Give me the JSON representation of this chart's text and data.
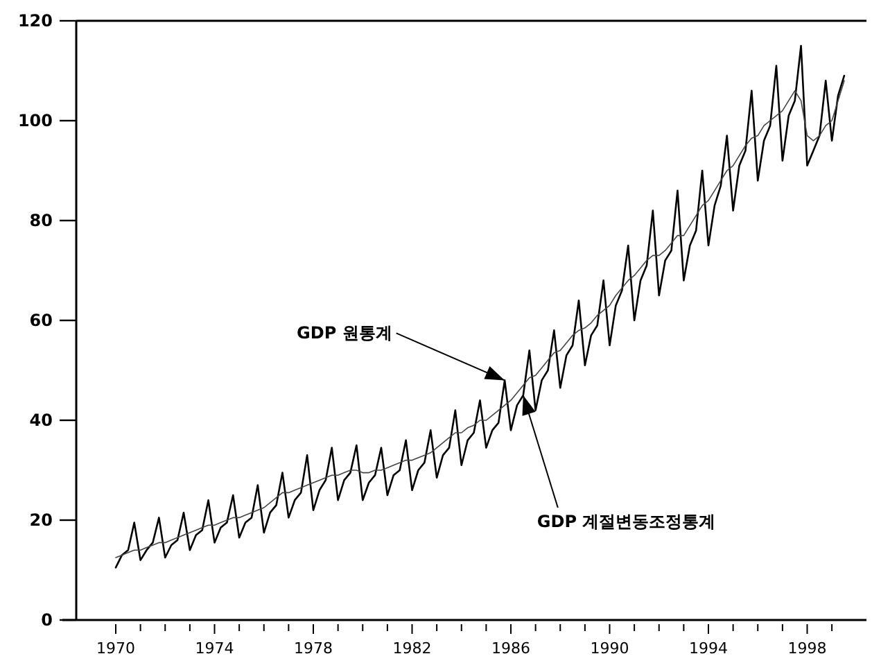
{
  "chart_data": {
    "type": "line",
    "x": [
      1970,
      1970.25,
      1970.5,
      1970.75,
      1971,
      1971.25,
      1971.5,
      1971.75,
      1972,
      1972.25,
      1972.5,
      1972.75,
      1973,
      1973.25,
      1973.5,
      1973.75,
      1974,
      1974.25,
      1974.5,
      1974.75,
      1975,
      1975.25,
      1975.5,
      1975.75,
      1976,
      1976.25,
      1976.5,
      1976.75,
      1977,
      1977.25,
      1977.5,
      1977.75,
      1978,
      1978.25,
      1978.5,
      1978.75,
      1979,
      1979.25,
      1979.5,
      1979.75,
      1980,
      1980.25,
      1980.5,
      1980.75,
      1981,
      1981.25,
      1981.5,
      1981.75,
      1982,
      1982.25,
      1982.5,
      1982.75,
      1983,
      1983.25,
      1983.5,
      1983.75,
      1984,
      1984.25,
      1984.5,
      1984.75,
      1985,
      1985.25,
      1985.5,
      1985.75,
      1986,
      1986.25,
      1986.5,
      1986.75,
      1987,
      1987.25,
      1987.5,
      1987.75,
      1988,
      1988.25,
      1988.5,
      1988.75,
      1989,
      1989.25,
      1989.5,
      1989.75,
      1990,
      1990.25,
      1990.5,
      1990.75,
      1991,
      1991.25,
      1991.5,
      1991.75,
      1992,
      1992.25,
      1992.5,
      1992.75,
      1993,
      1993.25,
      1993.5,
      1993.75,
      1994,
      1994.25,
      1994.5,
      1994.75,
      1995,
      1995.25,
      1995.5,
      1995.75,
      1996,
      1996.25,
      1996.5,
      1996.75,
      1997,
      1997.25,
      1997.5,
      1997.75,
      1998,
      1998.25,
      1998.5,
      1998.75,
      1999,
      1999.25,
      1999.5
    ],
    "series": [
      {
        "color": "#000000",
        "values": [
          10.5,
          13,
          14,
          19.5,
          12,
          14,
          15.5,
          20.5,
          12.5,
          15,
          16,
          21.5,
          14,
          17,
          18,
          24,
          15.5,
          18.5,
          19.5,
          25,
          16.5,
          19.5,
          20.5,
          27,
          17.5,
          21.5,
          23,
          29.5,
          20.5,
          24,
          25.5,
          33,
          22,
          26,
          28,
          34.5,
          24,
          28,
          29.5,
          35,
          24,
          27.5,
          29,
          34.5,
          25,
          29,
          30,
          36,
          26,
          30,
          31.5,
          38,
          28.5,
          33,
          34.5,
          42,
          31,
          36,
          37.5,
          44,
          34.5,
          38,
          39.5,
          48,
          38,
          43,
          45,
          54,
          42,
          48,
          50,
          58,
          46.5,
          53,
          55,
          64,
          51,
          57,
          59,
          68,
          55,
          63,
          66,
          75,
          60,
          68,
          71,
          82,
          65,
          72,
          74,
          86,
          68,
          75,
          78,
          90,
          75,
          83,
          87,
          97,
          82,
          91,
          94,
          106,
          88,
          96,
          99,
          111,
          92,
          101,
          104,
          115,
          91,
          94,
          97,
          108,
          96,
          105,
          109
        ]
      },
      {
        "color": "#444444",
        "values": [
          12.5,
          13,
          13.5,
          14,
          14,
          14.5,
          15,
          15.5,
          15.5,
          16,
          16.5,
          17,
          17.5,
          18,
          18.5,
          19,
          19,
          19.5,
          20,
          20.5,
          20.5,
          21,
          21.5,
          22,
          22.5,
          23.5,
          24.5,
          25.5,
          25.5,
          26,
          26.5,
          27,
          27.5,
          28,
          28.5,
          29,
          29,
          29.5,
          30,
          30,
          29.5,
          29.5,
          30,
          30,
          30.5,
          31,
          31.5,
          32,
          32,
          32.5,
          33,
          33.5,
          34.5,
          35.5,
          36.5,
          37.5,
          37.5,
          38.5,
          39,
          40,
          40,
          41,
          42,
          43,
          44,
          45.5,
          47,
          48.5,
          49,
          50.5,
          52,
          53.5,
          54,
          55.5,
          57,
          58,
          58.5,
          59.5,
          61,
          62,
          63,
          65,
          66.5,
          68,
          69,
          70.5,
          72,
          73,
          73,
          74,
          75.5,
          77,
          77,
          79,
          81,
          83,
          84,
          86,
          88,
          90,
          91,
          93,
          95,
          96.5,
          97,
          99,
          100,
          101,
          102,
          104,
          106,
          104,
          97,
          96,
          97,
          99,
          100,
          104,
          108
        ]
      }
    ],
    "xlim": [
      1968.4,
      2000.4
    ],
    "ylim": [
      0,
      120
    ],
    "yticks": [
      0,
      20,
      40,
      60,
      80,
      100,
      120
    ],
    "xticks": [
      1970,
      {
        "value": 1971,
        "label": null
      },
      {
        "value": 1972,
        "label": null
      },
      {
        "value": 1973,
        "label": null
      },
      1974,
      {
        "value": 1975,
        "label": null
      },
      {
        "value": 1976,
        "label": null
      },
      {
        "value": 1977,
        "label": null
      },
      1978,
      {
        "value": 1979,
        "label": null
      },
      {
        "value": 1980,
        "label": null
      },
      {
        "value": 1981,
        "label": null
      },
      1982,
      {
        "value": 1983,
        "label": null
      },
      {
        "value": 1984,
        "label": null
      },
      {
        "value": 1985,
        "label": null
      },
      1986,
      {
        "value": 1987,
        "label": null
      },
      {
        "value": 1988,
        "label": null
      },
      {
        "value": 1989,
        "label": null
      },
      1990,
      {
        "value": 1991,
        "label": null
      },
      {
        "value": 1992,
        "label": null
      },
      {
        "value": 1993,
        "label": null
      },
      1994,
      {
        "value": 1995,
        "label": null
      },
      {
        "value": 1996,
        "label": null
      },
      {
        "value": 1997,
        "label": null
      },
      1998,
      {
        "value": 1999,
        "label": null
      }
    ],
    "annotations": [
      {
        "text": "GDP 원통계",
        "x": 1985.75,
        "y": 48
      },
      {
        "text": "GDP 계절변동조정통계",
        "x": 1986.5,
        "y": 45
      }
    ]
  }
}
